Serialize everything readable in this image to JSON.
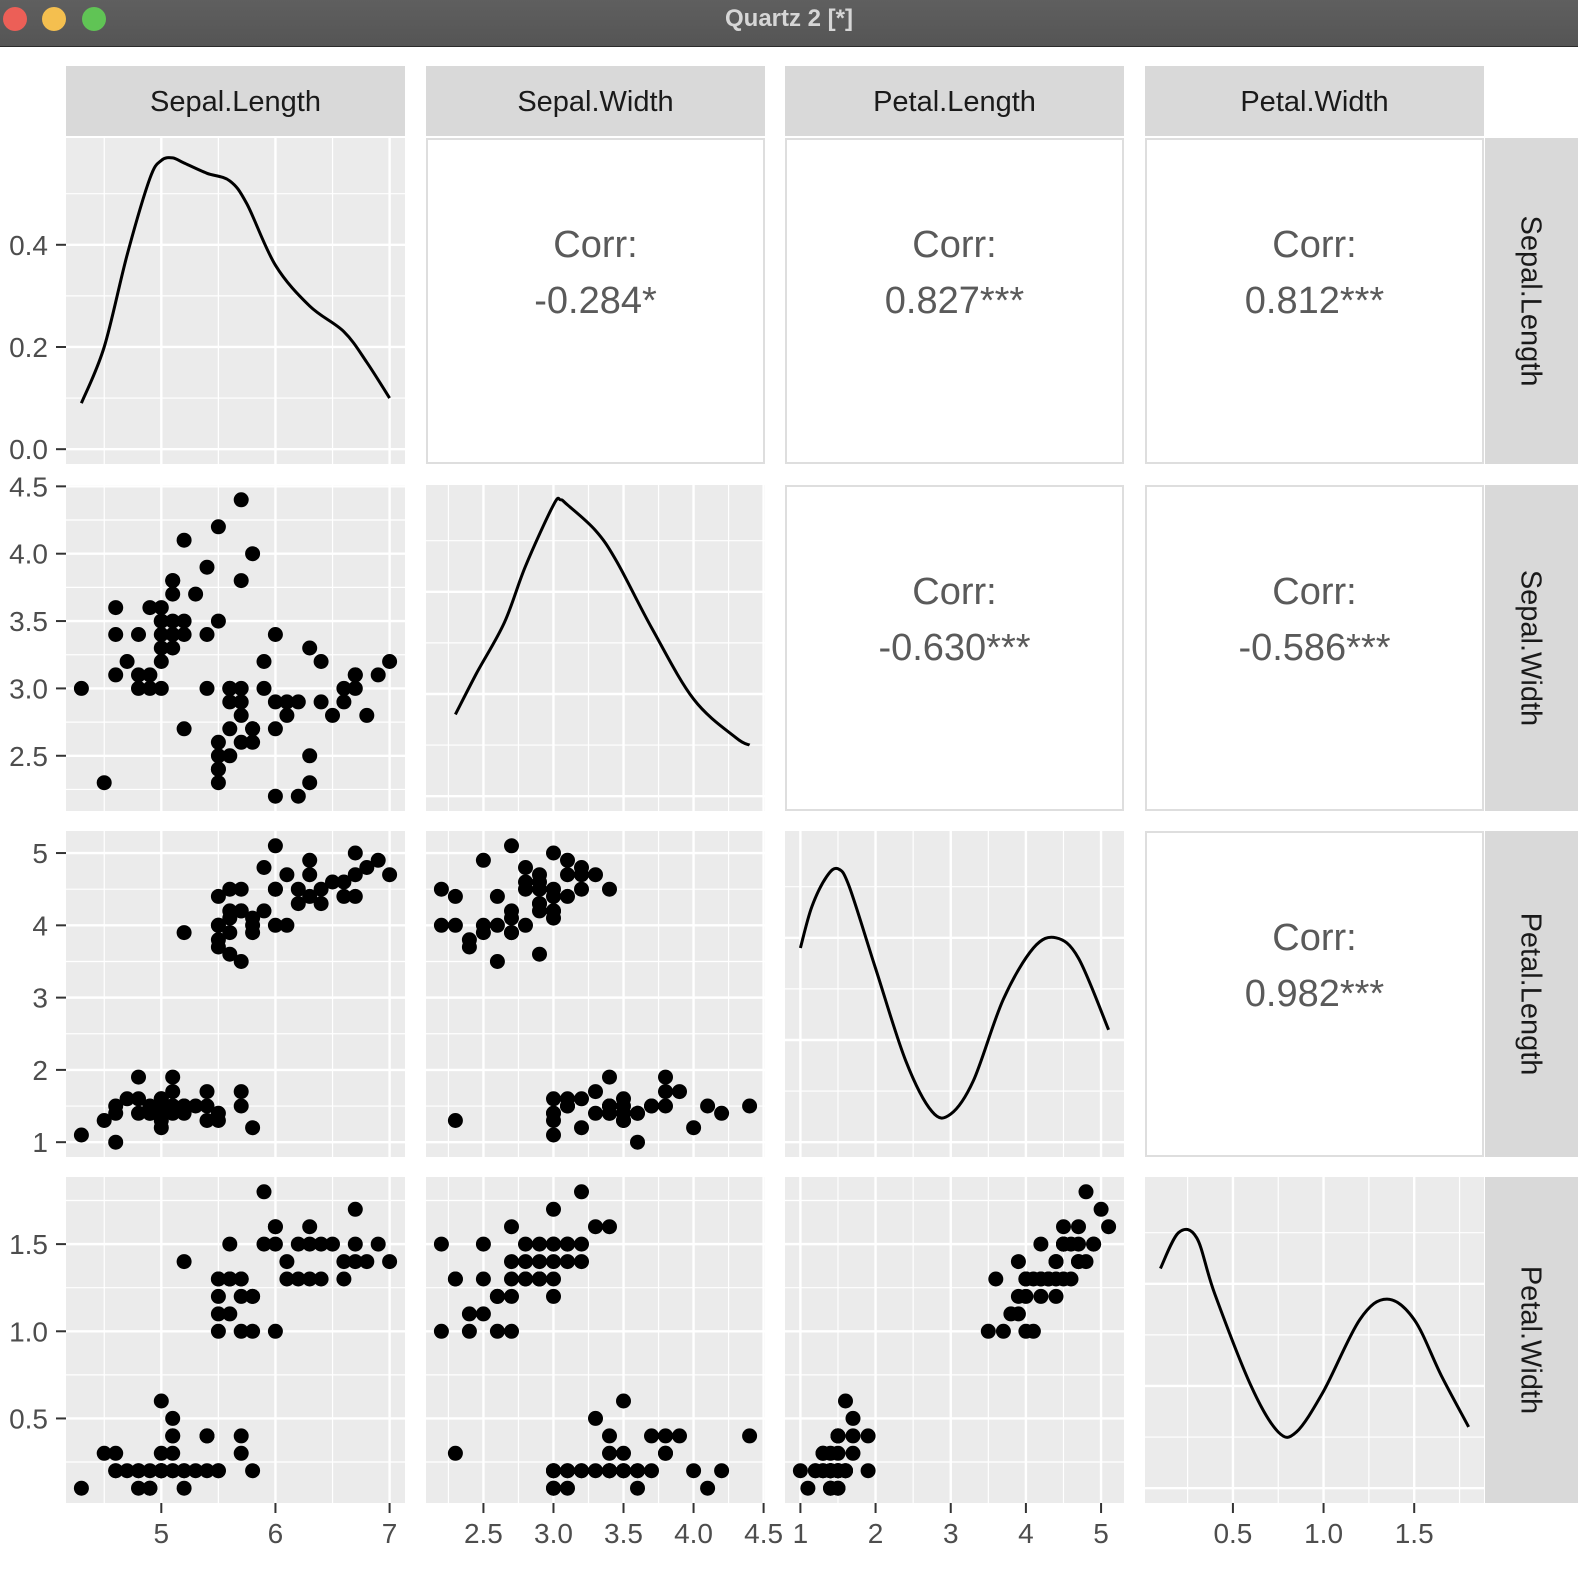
{
  "window": {
    "title": "Quartz 2 [*]",
    "controls": [
      "close",
      "minimize",
      "zoom"
    ],
    "control_colors": {
      "close": "#ec5f57",
      "minimize": "#f4bf4f",
      "zoom": "#60c455"
    }
  },
  "chart_data": {
    "type": "scatter",
    "chart_kind": "pairs-plot (scatterplot matrix)",
    "variables": [
      "Sepal.Length",
      "Sepal.Width",
      "Petal.Length",
      "Petal.Width"
    ],
    "ranges": {
      "Sepal.Length": [
        4.3,
        7.0
      ],
      "Sepal.Width": [
        2.2,
        4.4
      ],
      "Petal.Length": [
        1.0,
        5.1
      ],
      "Petal.Width": [
        0.1,
        1.8
      ]
    },
    "density_ylim": [
      0,
      0.58
    ],
    "ticks": {
      "Sepal.Length": {
        "x": [
          "5",
          "6",
          "7"
        ],
        "x_values": [
          5,
          6,
          7
        ],
        "y": [
          "0.0",
          "0.2",
          "0.4"
        ],
        "y_values": [
          0.0,
          0.2,
          0.4
        ]
      },
      "Sepal.Width": {
        "x": [
          "2.5",
          "3.0",
          "3.5",
          "4.0",
          "4.5"
        ],
        "x_values": [
          2.5,
          3.0,
          3.5,
          4.0,
          4.5
        ],
        "y": [
          "2.5",
          "3.0",
          "3.5",
          "4.0",
          "4.5"
        ],
        "y_values": [
          2.5,
          3.0,
          3.5,
          4.0,
          4.5
        ]
      },
      "Petal.Length": {
        "x": [
          "1",
          "2",
          "3",
          "4",
          "5"
        ],
        "x_values": [
          1,
          2,
          3,
          4,
          5
        ],
        "y": [
          "1",
          "2",
          "3",
          "4",
          "5"
        ],
        "y_values": [
          1,
          2,
          3,
          4,
          5
        ]
      },
      "Petal.Width": {
        "x": [
          "0.5",
          "1.0",
          "1.5"
        ],
        "x_values": [
          0.5,
          1.0,
          1.5
        ],
        "y": [
          "0.5",
          "1.0",
          "1.5"
        ],
        "y_values": [
          0.5,
          1.0,
          1.5
        ]
      }
    },
    "correlations": [
      {
        "row": "Sepal.Length",
        "col": "Sepal.Width",
        "label": "Corr:",
        "value": "-0.284*"
      },
      {
        "row": "Sepal.Length",
        "col": "Petal.Length",
        "label": "Corr:",
        "value": "0.827***"
      },
      {
        "row": "Sepal.Length",
        "col": "Petal.Width",
        "label": "Corr:",
        "value": "0.812***"
      },
      {
        "row": "Sepal.Width",
        "col": "Petal.Length",
        "label": "Corr:",
        "value": "-0.630***"
      },
      {
        "row": "Sepal.Width",
        "col": "Petal.Width",
        "label": "Corr:",
        "value": "-0.586***"
      },
      {
        "row": "Petal.Length",
        "col": "Petal.Width",
        "label": "Corr:",
        "value": "0.982***"
      }
    ],
    "densities": {
      "Sepal.Length": [
        [
          4.3,
          0.09
        ],
        [
          4.5,
          0.2
        ],
        [
          4.7,
          0.38
        ],
        [
          4.9,
          0.53
        ],
        [
          5.0,
          0.565
        ],
        [
          5.1,
          0.57
        ],
        [
          5.2,
          0.56
        ],
        [
          5.4,
          0.54
        ],
        [
          5.6,
          0.525
        ],
        [
          5.75,
          0.48
        ],
        [
          6.0,
          0.36
        ],
        [
          6.3,
          0.28
        ],
        [
          6.6,
          0.23
        ],
        [
          6.8,
          0.17
        ],
        [
          7.0,
          0.1
        ]
      ],
      "Sepal.Width": [
        [
          2.3,
          0.16
        ],
        [
          2.45,
          0.24
        ],
        [
          2.65,
          0.34
        ],
        [
          2.8,
          0.45
        ],
        [
          3.0,
          0.57
        ],
        [
          3.05,
          0.58
        ],
        [
          3.1,
          0.57
        ],
        [
          3.3,
          0.52
        ],
        [
          3.45,
          0.46
        ],
        [
          3.7,
          0.33
        ],
        [
          4.0,
          0.19
        ],
        [
          4.3,
          0.115
        ],
        [
          4.4,
          0.1
        ]
      ],
      "Petal.Length": [
        [
          1.0,
          0.38
        ],
        [
          1.15,
          0.46
        ],
        [
          1.35,
          0.52
        ],
        [
          1.5,
          0.535
        ],
        [
          1.65,
          0.5
        ],
        [
          2.0,
          0.34
        ],
        [
          2.4,
          0.16
        ],
        [
          2.75,
          0.06
        ],
        [
          3.0,
          0.055
        ],
        [
          3.3,
          0.12
        ],
        [
          3.7,
          0.28
        ],
        [
          4.1,
          0.38
        ],
        [
          4.4,
          0.4
        ],
        [
          4.7,
          0.36
        ],
        [
          5.1,
          0.22
        ]
      ],
      "Petal.Width": [
        [
          0.1,
          0.43
        ],
        [
          0.2,
          0.5
        ],
        [
          0.3,
          0.49
        ],
        [
          0.4,
          0.38
        ],
        [
          0.6,
          0.2
        ],
        [
          0.75,
          0.11
        ],
        [
          0.85,
          0.11
        ],
        [
          1.0,
          0.19
        ],
        [
          1.2,
          0.33
        ],
        [
          1.35,
          0.37
        ],
        [
          1.5,
          0.33
        ],
        [
          1.65,
          0.22
        ],
        [
          1.8,
          0.12
        ]
      ]
    },
    "observations": [
      [
        4.3,
        3.0,
        1.1,
        0.1
      ],
      [
        4.5,
        2.3,
        1.3,
        0.3
      ],
      [
        4.6,
        3.1,
        1.5,
        0.2
      ],
      [
        4.6,
        3.4,
        1.4,
        0.3
      ],
      [
        4.6,
        3.6,
        1.0,
        0.2
      ],
      [
        4.7,
        3.2,
        1.6,
        0.2
      ],
      [
        4.8,
        3.0,
        1.4,
        0.1
      ],
      [
        4.8,
        3.4,
        1.9,
        0.2
      ],
      [
        4.8,
        3.1,
        1.6,
        0.2
      ],
      [
        4.9,
        3.0,
        1.4,
        0.2
      ],
      [
        4.9,
        3.1,
        1.5,
        0.1
      ],
      [
        4.9,
        3.6,
        1.4,
        0.1
      ],
      [
        5.0,
        3.0,
        1.6,
        0.2
      ],
      [
        5.0,
        3.4,
        1.5,
        0.2
      ],
      [
        5.0,
        3.5,
        1.3,
        0.3
      ],
      [
        5.0,
        3.3,
        1.4,
        0.2
      ],
      [
        5.0,
        3.2,
        1.2,
        0.2
      ],
      [
        5.0,
        3.6,
        1.4,
        0.2
      ],
      [
        5.0,
        3.5,
        1.6,
        0.6
      ],
      [
        5.1,
        3.5,
        1.4,
        0.2
      ],
      [
        5.1,
        3.8,
        1.5,
        0.3
      ],
      [
        5.1,
        3.7,
        1.5,
        0.4
      ],
      [
        5.1,
        3.3,
        1.7,
        0.5
      ],
      [
        5.1,
        3.4,
        1.5,
        0.2
      ],
      [
        5.1,
        3.8,
        1.9,
        0.4
      ],
      [
        5.2,
        3.5,
        1.5,
        0.2
      ],
      [
        5.2,
        3.4,
        1.4,
        0.2
      ],
      [
        5.2,
        4.1,
        1.5,
        0.1
      ],
      [
        5.3,
        3.7,
        1.5,
        0.2
      ],
      [
        5.4,
        3.9,
        1.7,
        0.4
      ],
      [
        5.4,
        3.4,
        1.5,
        0.4
      ],
      [
        5.4,
        3.0,
        1.3,
        0.2
      ],
      [
        5.5,
        4.2,
        1.4,
        0.2
      ],
      [
        5.5,
        3.5,
        1.3,
        0.2
      ],
      [
        5.7,
        4.4,
        1.5,
        0.4
      ],
      [
        5.7,
        3.8,
        1.7,
        0.3
      ],
      [
        5.8,
        4.0,
        1.2,
        0.2
      ],
      [
        5.2,
        2.7,
        3.9,
        1.4
      ],
      [
        5.5,
        2.3,
        4.0,
        1.3
      ],
      [
        5.5,
        2.4,
        3.8,
        1.1
      ],
      [
        5.5,
        2.4,
        3.7,
        1.0
      ],
      [
        5.5,
        2.5,
        4.0,
        1.3
      ],
      [
        5.5,
        2.6,
        4.4,
        1.2
      ],
      [
        5.6,
        2.9,
        3.6,
        1.3
      ],
      [
        5.6,
        3.0,
        4.5,
        1.5
      ],
      [
        5.6,
        2.5,
        3.9,
        1.1
      ],
      [
        5.6,
        2.7,
        4.2,
        1.3
      ],
      [
        5.6,
        3.0,
        4.1,
        1.3
      ],
      [
        5.7,
        2.8,
        4.5,
        1.3
      ],
      [
        5.7,
        2.6,
        3.5,
        1.0
      ],
      [
        5.7,
        3.0,
        4.2,
        1.2
      ],
      [
        5.7,
        2.9,
        4.2,
        1.3
      ],
      [
        5.8,
        2.7,
        4.1,
        1.0
      ],
      [
        5.8,
        2.7,
        3.9,
        1.2
      ],
      [
        5.8,
        2.6,
        4.0,
        1.2
      ],
      [
        5.9,
        3.0,
        4.2,
        1.5
      ],
      [
        5.9,
        3.2,
        4.8,
        1.8
      ],
      [
        6.0,
        2.2,
        4.0,
        1.0
      ],
      [
        6.0,
        2.9,
        4.5,
        1.5
      ],
      [
        6.0,
        3.4,
        4.5,
        1.6
      ],
      [
        6.0,
        2.7,
        5.1,
        1.6
      ],
      [
        6.1,
        2.9,
        4.7,
        1.4
      ],
      [
        6.1,
        2.8,
        4.0,
        1.3
      ],
      [
        6.2,
        2.2,
        4.5,
        1.5
      ],
      [
        6.2,
        2.9,
        4.3,
        1.3
      ],
      [
        6.3,
        3.3,
        4.7,
        1.6
      ],
      [
        6.3,
        2.5,
        4.9,
        1.5
      ],
      [
        6.3,
        2.3,
        4.4,
        1.3
      ],
      [
        6.4,
        3.2,
        4.5,
        1.5
      ],
      [
        6.4,
        2.9,
        4.3,
        1.3
      ],
      [
        6.5,
        2.8,
        4.6,
        1.5
      ],
      [
        6.6,
        2.9,
        4.6,
        1.3
      ],
      [
        6.6,
        3.0,
        4.4,
        1.4
      ],
      [
        6.7,
        3.1,
        4.4,
        1.4
      ],
      [
        6.7,
        3.0,
        5.0,
        1.7
      ],
      [
        6.7,
        3.1,
        4.7,
        1.5
      ],
      [
        6.8,
        2.8,
        4.8,
        1.4
      ],
      [
        6.9,
        3.1,
        4.9,
        1.5
      ],
      [
        7.0,
        3.2,
        4.7,
        1.4
      ]
    ]
  }
}
